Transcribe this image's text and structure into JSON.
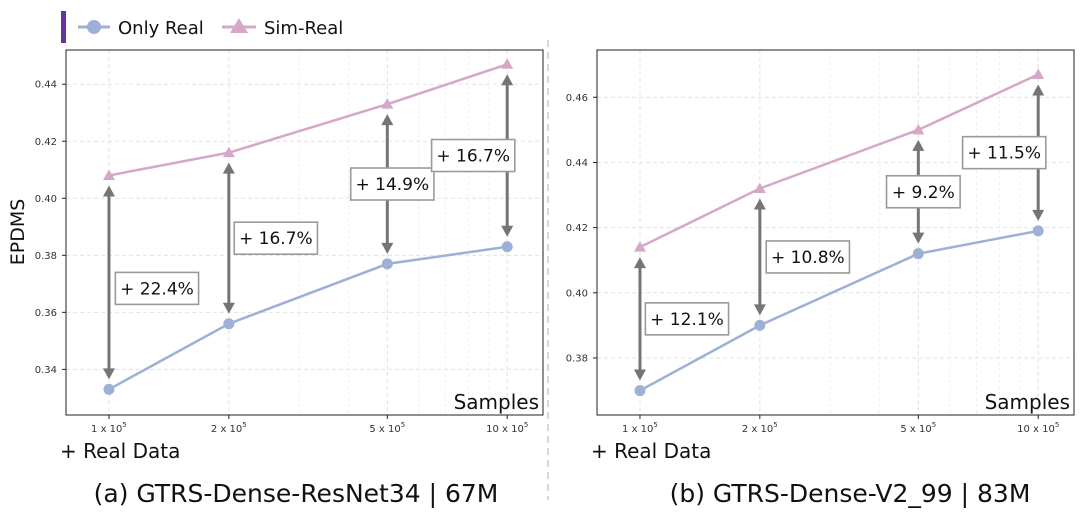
{
  "colors": {
    "only_real": "#9db0d6",
    "sim_real": "#d4a8c8",
    "arrow": "#757575",
    "box_border": "#9a9a9a",
    "grid": "#e2e2e2",
    "legend_bar": "#6b2fa0"
  },
  "legend": {
    "only_real": "Only Real",
    "sim_real": "Sim-Real"
  },
  "chart_data": [
    {
      "type": "line",
      "ylabel": "EPDMS",
      "x_axis_title": "Samples",
      "x_suffix_label": "+ Real Data",
      "caption": "(a) GTRS-Dense-ResNet34 | 67M",
      "x": [
        1,
        2,
        5,
        10
      ],
      "tick_labels": [
        {
          "mant": "1 x 10",
          "exp": "5"
        },
        {
          "mant": "2 x 10",
          "exp": "5"
        },
        {
          "mant": "5 x 10",
          "exp": "5"
        },
        {
          "mant": "10 x 10",
          "exp": "5"
        }
      ],
      "xlim": [
        0.78,
        12.3
      ],
      "ylim": [
        0.324,
        0.452
      ],
      "yticks": [
        0.34,
        0.36,
        0.38,
        0.4,
        0.42,
        0.44
      ],
      "ytick_labels": [
        "0.34",
        "0.36",
        "0.38",
        "0.40",
        "0.42",
        "0.44"
      ],
      "series": [
        {
          "name": "Only Real",
          "values": [
            0.333,
            0.356,
            0.377,
            0.383
          ]
        },
        {
          "name": "Sim-Real",
          "values": [
            0.408,
            0.416,
            0.433,
            0.447
          ]
        }
      ],
      "annotations": [
        "+ 22.4%",
        "+ 16.7%",
        "+ 14.9%",
        "+ 16.7%"
      ]
    },
    {
      "type": "line",
      "ylabel": "",
      "x_axis_title": "Samples",
      "x_suffix_label": "+ Real Data",
      "caption": "(b) GTRS-Dense-V2_99 | 83M",
      "x": [
        1,
        2,
        5,
        10
      ],
      "tick_labels": [
        {
          "mant": "1 x 10",
          "exp": "5"
        },
        {
          "mant": "2 x 10",
          "exp": "5"
        },
        {
          "mant": "5 x 10",
          "exp": "5"
        },
        {
          "mant": "10 x 10",
          "exp": "5"
        }
      ],
      "xlim": [
        0.78,
        12.3
      ],
      "ylim": [
        0.3625,
        0.4745
      ],
      "yticks": [
        0.38,
        0.4,
        0.42,
        0.44,
        0.46
      ],
      "ytick_labels": [
        "0.38",
        "0.40",
        "0.42",
        "0.44",
        "0.46"
      ],
      "series": [
        {
          "name": "Only Real",
          "values": [
            0.37,
            0.39,
            0.412,
            0.419
          ]
        },
        {
          "name": "Sim-Real",
          "values": [
            0.414,
            0.432,
            0.45,
            0.467
          ]
        }
      ],
      "annotations": [
        "+ 12.1%",
        "+ 10.8%",
        "+ 9.2%",
        "+ 11.5%"
      ]
    }
  ]
}
